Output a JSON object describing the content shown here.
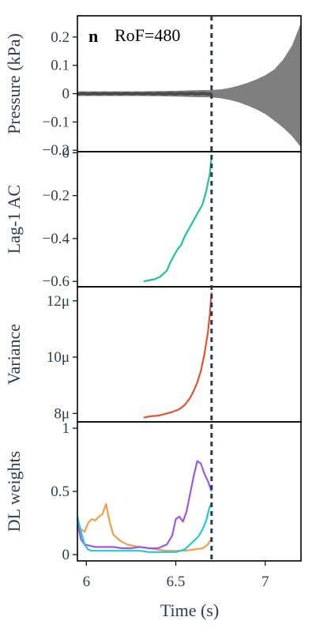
{
  "chart_data": {
    "type": "line",
    "panel_letter": "n",
    "annotation": "RoF=480",
    "xlabel": "Time (s)",
    "xlim": [
      5.95,
      7.2
    ],
    "x_ticks": [
      6,
      6.5,
      7
    ],
    "x_tick_labels": [
      "6",
      "6.5",
      "7"
    ],
    "transition_time": 6.7,
    "transition_color": "#2c3a55",
    "panels": [
      {
        "id": "pressure",
        "ylabel": "Pressure (kPa)",
        "ylim": [
          -0.205,
          0.275
        ],
        "y_ticks": [
          -0.2,
          -0.1,
          0,
          0.1,
          0.2
        ],
        "y_tick_labels": [
          "−0.2",
          "−0.1",
          "0",
          "0.1",
          "0.2"
        ],
        "series": [
          {
            "kind": "oscillation_envelope",
            "color": "#7f7f7f",
            "x": [
              5.95,
              6.1,
              6.3,
              6.5,
              6.6,
              6.7,
              6.75,
              6.8,
              6.85,
              6.9,
              6.95,
              7.0,
              7.05,
              7.1,
              7.15,
              7.2
            ],
            "upper": [
              0.008,
              0.008,
              0.008,
              0.01,
              0.012,
              0.013,
              0.015,
              0.02,
              0.028,
              0.038,
              0.05,
              0.065,
              0.085,
              0.12,
              0.17,
              0.25
            ],
            "lower": [
              -0.008,
              -0.008,
              -0.008,
              -0.01,
              -0.012,
              -0.013,
              -0.016,
              -0.022,
              -0.03,
              -0.042,
              -0.055,
              -0.072,
              -0.095,
              -0.12,
              -0.15,
              -0.19
            ]
          }
        ]
      },
      {
        "id": "lag1",
        "ylabel": "Lag-1 AC",
        "ylim": [
          -0.625,
          0.005
        ],
        "y_ticks": [
          -0.6,
          -0.4,
          -0.2,
          0
        ],
        "y_tick_labels": [
          "−0.6",
          "−0.4",
          "−0.2",
          "0"
        ],
        "series": [
          {
            "color": "#1fc39a",
            "x": [
              6.32,
              6.35,
              6.38,
              6.41,
              6.43,
              6.45,
              6.47,
              6.49,
              6.51,
              6.53,
              6.55,
              6.57,
              6.59,
              6.61,
              6.63,
              6.65,
              6.67,
              6.69,
              6.7
            ],
            "y": [
              -0.6,
              -0.595,
              -0.59,
              -0.58,
              -0.565,
              -0.55,
              -0.51,
              -0.48,
              -0.45,
              -0.43,
              -0.39,
              -0.36,
              -0.33,
              -0.3,
              -0.27,
              -0.24,
              -0.18,
              -0.1,
              -0.02
            ]
          }
        ]
      },
      {
        "id": "variance",
        "ylabel": "Variance",
        "ylim": [
          7.7,
          12.5
        ],
        "y_ticks": [
          8,
          10,
          12
        ],
        "y_tick_labels": [
          "8μ",
          "10μ",
          "12μ"
        ],
        "series": [
          {
            "color": "#e4522f",
            "x": [
              6.32,
              6.36,
              6.4,
              6.44,
              6.48,
              6.52,
              6.55,
              6.58,
              6.6,
              6.62,
              6.64,
              6.66,
              6.68,
              6.69,
              6.7
            ],
            "y": [
              7.85,
              7.9,
              7.92,
              7.98,
              8.05,
              8.15,
              8.3,
              8.55,
              8.8,
              9.1,
              9.5,
              10.1,
              10.9,
              11.5,
              12.3
            ]
          }
        ]
      },
      {
        "id": "dl",
        "ylabel": "DL weights",
        "ylim": [
          -0.05,
          1.05
        ],
        "y_ticks": [
          0,
          0.5,
          1
        ],
        "y_tick_labels": [
          "0",
          "0.5",
          "1"
        ],
        "series": [
          {
            "color": "#f59e4c",
            "x": [
              5.95,
              5.97,
              5.99,
              6.01,
              6.03,
              6.05,
              6.07,
              6.09,
              6.11,
              6.13,
              6.15,
              6.18,
              6.2,
              6.23,
              6.26,
              6.3,
              6.35,
              6.4,
              6.45,
              6.5,
              6.55,
              6.6,
              6.65,
              6.68,
              6.7
            ],
            "y": [
              0.25,
              0.2,
              0.18,
              0.25,
              0.28,
              0.27,
              0.3,
              0.32,
              0.4,
              0.26,
              0.16,
              0.12,
              0.1,
              0.08,
              0.07,
              0.06,
              0.05,
              0.04,
              0.03,
              0.03,
              0.03,
              0.04,
              0.05,
              0.08,
              0.13
            ]
          },
          {
            "color": "#9b59e6",
            "x": [
              5.95,
              5.97,
              5.99,
              6.02,
              6.05,
              6.1,
              6.15,
              6.2,
              6.25,
              6.3,
              6.35,
              6.4,
              6.45,
              6.48,
              6.5,
              6.52,
              6.54,
              6.56,
              6.58,
              6.6,
              6.62,
              6.64,
              6.66,
              6.68,
              6.7
            ],
            "y": [
              0.25,
              0.12,
              0.08,
              0.07,
              0.06,
              0.06,
              0.06,
              0.05,
              0.05,
              0.06,
              0.05,
              0.05,
              0.08,
              0.15,
              0.28,
              0.3,
              0.26,
              0.34,
              0.48,
              0.62,
              0.74,
              0.72,
              0.64,
              0.58,
              0.5
            ]
          },
          {
            "color": "#22c9d6",
            "x": [
              5.95,
              5.97,
              5.99,
              6.01,
              6.03,
              6.06,
              6.1,
              6.15,
              6.2,
              6.25,
              6.3,
              6.35,
              6.4,
              6.45,
              6.5,
              6.55,
              6.58,
              6.61,
              6.63,
              6.65,
              6.67,
              6.69,
              6.7
            ],
            "y": [
              0.3,
              0.18,
              0.08,
              0.04,
              0.03,
              0.03,
              0.03,
              0.03,
              0.03,
              0.03,
              0.03,
              0.02,
              0.02,
              0.02,
              0.02,
              0.04,
              0.08,
              0.12,
              0.15,
              0.2,
              0.27,
              0.38,
              0.4
            ]
          }
        ]
      }
    ]
  }
}
